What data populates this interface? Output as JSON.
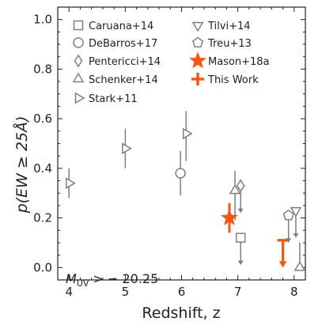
{
  "chart_data": {
    "type": "scatter",
    "xlabel": "Redshift, z",
    "ylabel": "p(EW ≥ 25Å)",
    "xlim": [
      3.8,
      8.2
    ],
    "ylim": [
      -0.05,
      1.05
    ],
    "xticks": [
      "4",
      "5",
      "6",
      "7",
      "8"
    ],
    "yticks": [
      "0.0",
      "0.2",
      "0.4",
      "0.6",
      "0.8",
      "1.0"
    ],
    "annotation": {
      "symbol": "M",
      "subscript": "UV",
      "text": " > − 20.25"
    },
    "legend_position": "top",
    "colors": {
      "gray": "#7f7f7f",
      "accent": "#f05a16",
      "axis": "#222222"
    },
    "series": [
      {
        "name": "Caruana+14",
        "marker": "square",
        "color": "#7f7f7f",
        "points": [
          {
            "x": 7.05,
            "y": 0.12,
            "upper_limit": true,
            "limit_to": 0.01
          }
        ]
      },
      {
        "name": "DeBarros+17",
        "marker": "circle",
        "color": "#7f7f7f",
        "points": [
          {
            "x": 5.98,
            "y": 0.38,
            "yerr_low": 0.09,
            "yerr_high": 0.09
          }
        ]
      },
      {
        "name": "Pentericci+14",
        "marker": "diamond",
        "color": "#7f7f7f",
        "points": [
          {
            "x": 7.05,
            "y": 0.33,
            "upper_limit": true,
            "limit_to": 0.22
          }
        ]
      },
      {
        "name": "Schenker+14",
        "marker": "triangle-up",
        "color": "#7f7f7f",
        "points": [
          {
            "x": 6.95,
            "y": 0.31,
            "yerr_low": 0.12,
            "yerr_high": 0.08
          },
          {
            "x": 8.1,
            "y": 0.0,
            "yerr_low": 0.0,
            "yerr_high": 0.1
          }
        ]
      },
      {
        "name": "Stark+11",
        "marker": "triangle-right",
        "color": "#7f7f7f",
        "points": [
          {
            "x": 4.0,
            "y": 0.34,
            "yerr_low": 0.06,
            "yerr_high": 0.06
          },
          {
            "x": 5.0,
            "y": 0.48,
            "yerr_low": 0.08,
            "yerr_high": 0.08
          },
          {
            "x": 6.08,
            "y": 0.54,
            "yerr_low": 0.11,
            "yerr_high": 0.09
          }
        ]
      },
      {
        "name": "Tilvi+14",
        "marker": "triangle-down",
        "color": "#7f7f7f",
        "points": [
          {
            "x": 8.03,
            "y": 0.23,
            "upper_limit": true,
            "limit_to": 0.12
          }
        ]
      },
      {
        "name": "Treu+13",
        "marker": "pentagon",
        "color": "#7f7f7f",
        "points": [
          {
            "x": 7.9,
            "y": 0.21,
            "upper_limit": true,
            "limit_to": 0.1
          }
        ]
      },
      {
        "name": "Mason+18a",
        "marker": "star",
        "color": "#f05a16",
        "points": [
          {
            "x": 6.85,
            "y": 0.2,
            "yerr_low": 0.06,
            "yerr_high": 0.06
          }
        ]
      },
      {
        "name": "This Work",
        "marker": "plus",
        "color": "#f05a16",
        "points": [
          {
            "x": 7.8,
            "y": 0.11,
            "upper_limit": true,
            "limit_to": 0.0
          }
        ]
      }
    ]
  }
}
